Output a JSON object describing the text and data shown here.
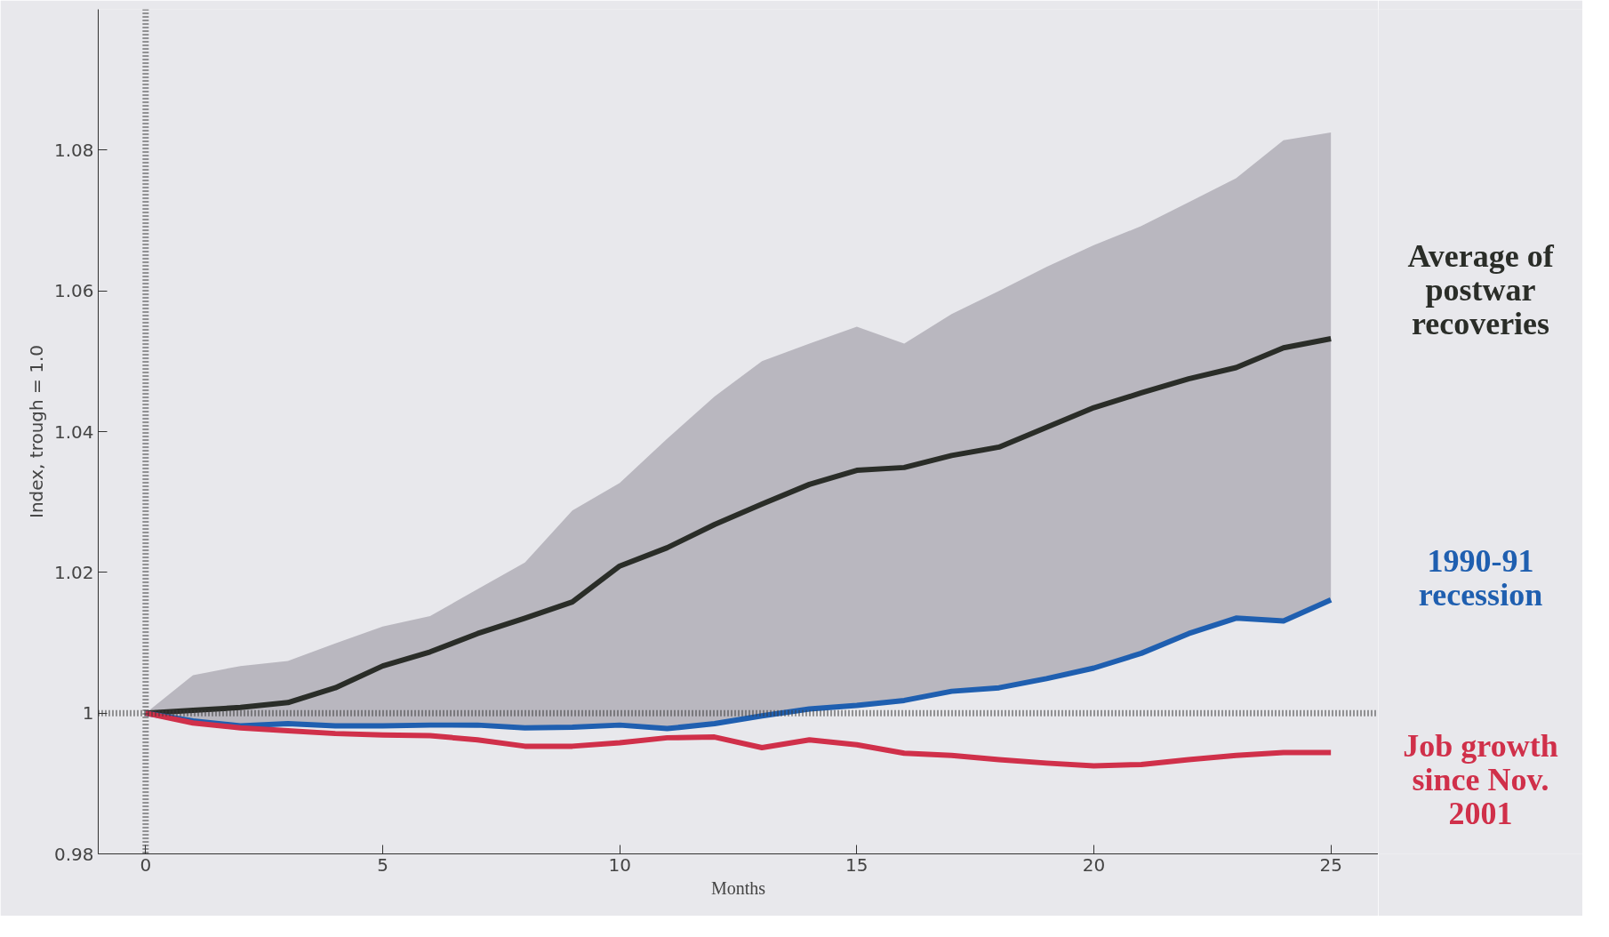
{
  "chart_data": {
    "type": "line",
    "xlabel": "Months",
    "ylabel": "Index, trough = 1.0",
    "x": [
      0,
      1,
      2,
      3,
      4,
      5,
      6,
      7,
      8,
      9,
      10,
      11,
      12,
      13,
      14,
      15,
      16,
      17,
      18,
      19,
      20,
      21,
      22,
      23,
      24,
      25
    ],
    "series": [
      {
        "name": "Average of postwar recoveries",
        "color": "#2a2d28",
        "values": [
          1.0,
          1.0004,
          1.0008,
          1.0015,
          1.0036,
          1.0067,
          1.0087,
          1.0113,
          1.0135,
          1.0158,
          1.0209,
          1.0235,
          1.0268,
          1.0297,
          1.0325,
          1.0345,
          1.0349,
          1.0366,
          1.0378,
          1.0406,
          1.0434,
          1.0455,
          1.0475,
          1.0491,
          1.0519,
          1.0532
        ],
        "lower": [
          1.0,
          0.9989,
          0.9982,
          0.9985,
          0.9982,
          0.9982,
          0.9983,
          0.9983,
          0.9979,
          0.998,
          0.9983,
          0.9978,
          0.9985,
          0.9996,
          1.0006,
          1.0011,
          1.0018,
          1.0031,
          1.0036,
          1.0049,
          1.0064,
          1.0085,
          1.0113,
          1.0135,
          1.0131,
          1.0161
        ],
        "upper": [
          1.0,
          1.0054,
          1.0067,
          1.0074,
          1.0099,
          1.0123,
          1.0138,
          1.0176,
          1.0214,
          1.0288,
          1.0327,
          1.039,
          1.045,
          1.05,
          1.0525,
          1.0549,
          1.0525,
          1.0567,
          1.06,
          1.0634,
          1.0665,
          1.0692,
          1.0726,
          1.076,
          1.0814,
          1.0825
        ]
      },
      {
        "name": "1990-91 recession",
        "color": "#1f5fb0",
        "values": [
          1.0,
          0.9989,
          0.9982,
          0.9985,
          0.9982,
          0.9982,
          0.9983,
          0.9983,
          0.9979,
          0.998,
          0.9983,
          0.9978,
          0.9985,
          0.9996,
          1.0006,
          1.0011,
          1.0018,
          1.0031,
          1.0036,
          1.0049,
          1.0064,
          1.0085,
          1.0113,
          1.0135,
          1.0131,
          1.0161
        ]
      },
      {
        "name": "Job growth since Nov. 2001",
        "color": "#d0304a",
        "values": [
          1.0,
          0.9986,
          0.9979,
          0.9975,
          0.9971,
          0.9969,
          0.9968,
          0.9962,
          0.9953,
          0.9953,
          0.9958,
          0.9965,
          0.9966,
          0.9951,
          0.9962,
          0.9955,
          0.9943,
          0.994,
          0.9934,
          0.9929,
          0.9925,
          0.9927,
          0.9934,
          0.994,
          0.9944,
          0.9944
        ]
      }
    ],
    "xlim": [
      -1,
      26
    ],
    "ylim": [
      0.98,
      1.1
    ],
    "xticks": [
      0,
      5,
      10,
      15,
      20,
      25
    ],
    "yticks": [
      0.98,
      1,
      1.02,
      1.04,
      1.06,
      1.08
    ],
    "ref_lines": [
      {
        "axis": "x",
        "value": 0,
        "color": "#3a3a3a",
        "line_style": "dotted"
      },
      {
        "axis": "y",
        "value": 1,
        "color": "#3a3a3a",
        "line_style": "dotted"
      }
    ],
    "grid": false,
    "marker": "none",
    "line_style": "solid"
  }
}
